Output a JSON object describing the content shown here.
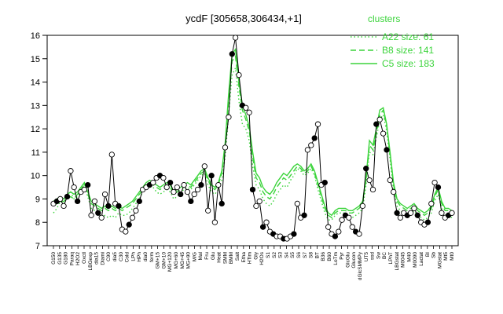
{
  "chart_data": {
    "type": "line",
    "title": "ycdF [305658,306434,+1]",
    "xlabel": "",
    "ylabel": "",
    "ylim": [
      7,
      16
    ],
    "yticks": [
      7,
      8,
      9,
      10,
      11,
      12,
      13,
      14,
      15,
      16
    ],
    "legend": {
      "title": "clusters",
      "placement": "top-right",
      "entries": [
        {
          "label": "A22 size: 61",
          "style": "dotted"
        },
        {
          "label": "B8 size: 141",
          "style": "dashed"
        },
        {
          "label": "C5 size: 183",
          "style": "solid"
        }
      ]
    },
    "x_tick_labels": [
      "G150",
      "G135",
      "G180",
      "Paraq",
      "H2O2",
      "Oxctl",
      "LBGexp",
      "dia15",
      "Diami",
      "C90",
      "dia5",
      "C30",
      "Cold",
      "LPh",
      "HPh",
      "dia0",
      "ferm",
      "GM+15",
      "GM+10",
      "MG+120",
      "MG+60",
      "MG+45",
      "MG+90",
      "M/G",
      "Mal",
      "Fru",
      "Glu",
      "Heat",
      "SMM",
      "BMM",
      "Salt",
      "Etha",
      "HTim",
      "Gly",
      "H2Os",
      "S1",
      "S2",
      "S3",
      "S4",
      "S5",
      "S6",
      "S7",
      "S8",
      "BT",
      "B36",
      "B60",
      "LoTm",
      "Pyr",
      "GlcGlu",
      "Glucon",
      "dGlcSMMPy",
      "UT5",
      "ssd",
      "Sw",
      "BC",
      "LPhT",
      "LBGstat",
      "M0045",
      "M40",
      "M0090",
      "Lactat",
      "BI",
      "Sb",
      "MGstat",
      "Mt5",
      "Mt0"
    ],
    "series": [
      {
        "values": [
          8.8,
          8.9,
          9.0,
          8.7,
          9.1,
          10.2,
          9.5,
          8.9,
          9.3,
          9.4,
          9.6,
          8.3,
          8.9,
          8.4,
          8.2,
          9.2,
          8.7,
          10.9,
          8.8,
          8.7,
          7.7,
          7.6,
          7.9,
          8.2,
          8.5,
          8.9,
          9.4,
          9.5,
          9.6,
          9.7,
          9.9,
          10.0,
          9.9,
          9.5,
          9.7,
          9.3,
          9.5,
          9.2,
          9.6,
          9.3,
          8.9,
          9.2,
          9.4,
          9.6,
          10.4,
          8.5,
          10.0,
          8.0,
          9.6,
          8.8,
          11.2,
          12.5,
          15.2,
          15.9,
          14.3,
          13.0,
          12.9,
          12.7,
          9.4,
          8.7,
          8.9,
          7.8,
          8.0,
          7.6,
          7.5,
          7.4,
          7.4,
          7.3,
          7.3,
          7.4,
          7.5,
          8.8,
          8.2,
          8.3,
          11.1,
          11.3,
          11.6,
          12.2,
          9.6,
          9.7,
          7.8,
          7.5,
          7.4,
          7.6,
          8.1,
          8.3,
          8.2,
          7.8,
          7.6,
          7.5,
          8.7,
          10.3,
          9.8,
          9.4,
          12.2,
          12.4,
          11.8,
          11.1,
          9.8,
          9.3,
          8.4,
          8.2,
          8.4,
          8.3,
          8.4,
          8.6,
          8.3,
          8.0,
          7.9,
          8.0,
          8.8,
          9.7,
          9.5,
          8.4,
          8.2,
          8.3,
          8.4
        ]
      }
    ],
    "clusters": [
      {
        "name": "A22",
        "values": [
          8.4,
          8.6,
          8.9,
          8.8,
          9.2,
          9.3,
          9.0,
          9.1,
          9.4,
          9.6,
          9.1,
          8.6,
          8.5,
          8.4,
          8.2,
          8.3,
          8.2,
          8.3,
          8.2,
          8.4,
          8.3,
          8.3,
          8.4,
          8.6,
          8.8,
          9.0,
          9.3,
          9.5,
          9.6,
          9.5,
          9.3,
          9.2,
          9.3,
          9.4,
          9.3,
          9.0,
          9.1,
          9.3,
          9.4,
          9.5,
          9.4,
          9.6,
          9.8,
          10.0,
          10.1,
          9.6,
          9.3,
          9.2,
          9.4,
          9.8,
          10.8,
          12.6,
          14.3,
          14.6,
          13.2,
          12.2,
          12.0,
          11.5,
          10.4,
          9.6,
          9.4,
          9.0,
          8.8,
          8.7,
          8.9,
          9.2,
          9.4,
          9.6,
          9.5,
          9.8,
          10.0,
          10.3,
          10.2,
          10.0,
          10.1,
          10.3,
          10.0,
          9.4,
          8.9,
          8.4,
          8.1,
          8.1,
          8.3,
          8.4,
          8.4,
          8.4,
          8.3,
          8.2,
          8.3,
          8.4,
          8.6,
          9.6,
          11.0,
          10.9,
          11.6,
          12.4,
          12.6,
          11.9,
          10.7,
          9.4,
          8.7,
          8.5,
          8.4,
          8.3,
          8.4,
          8.5,
          8.3,
          8.2,
          8.1,
          8.2,
          8.4,
          8.9,
          9.2,
          8.6,
          8.3,
          8.3,
          8.2
        ]
      },
      {
        "name": "B8",
        "values": [
          8.7,
          8.8,
          8.9,
          8.9,
          9.0,
          9.1,
          9.0,
          9.2,
          9.4,
          9.6,
          9.2,
          8.8,
          8.7,
          8.6,
          8.5,
          8.6,
          8.5,
          8.6,
          8.5,
          8.6,
          8.5,
          8.6,
          8.7,
          8.8,
          9.0,
          9.2,
          9.4,
          9.6,
          9.7,
          9.6,
          9.5,
          9.4,
          9.5,
          9.6,
          9.5,
          9.2,
          9.3,
          9.4,
          9.5,
          9.6,
          9.5,
          9.7,
          9.9,
          10.1,
          10.2,
          9.8,
          9.5,
          9.4,
          9.6,
          10.1,
          11.2,
          13.2,
          14.9,
          15.1,
          13.8,
          12.8,
          12.4,
          11.9,
          10.8,
          9.9,
          9.7,
          9.3,
          9.1,
          9.0,
          9.2,
          9.5,
          9.7,
          9.9,
          9.8,
          10.0,
          10.2,
          10.4,
          10.3,
          10.1,
          10.2,
          10.4,
          10.1,
          9.6,
          9.1,
          8.6,
          8.3,
          8.2,
          8.4,
          8.5,
          8.5,
          8.5,
          8.4,
          8.4,
          8.5,
          8.6,
          8.8,
          9.8,
          11.3,
          11.1,
          11.8,
          12.6,
          12.8,
          12.1,
          10.9,
          9.6,
          8.9,
          8.7,
          8.6,
          8.5,
          8.6,
          8.7,
          8.5,
          8.4,
          8.3,
          8.4,
          8.6,
          9.1,
          9.4,
          8.8,
          8.5,
          8.5,
          8.4
        ]
      },
      {
        "name": "C5",
        "values": [
          8.9,
          9.0,
          9.1,
          9.0,
          9.2,
          9.3,
          9.2,
          9.3,
          9.5,
          9.7,
          9.3,
          8.9,
          8.8,
          8.7,
          8.6,
          8.7,
          8.6,
          8.7,
          8.6,
          8.7,
          8.6,
          8.7,
          8.8,
          8.9,
          9.1,
          9.3,
          9.5,
          9.7,
          9.8,
          9.7,
          9.6,
          9.5,
          9.6,
          9.7,
          9.6,
          9.3,
          9.4,
          9.5,
          9.6,
          9.7,
          9.6,
          9.8,
          10.0,
          10.2,
          10.3,
          9.9,
          9.6,
          9.5,
          9.7,
          10.2,
          11.4,
          13.5,
          15.2,
          15.4,
          14.0,
          13.0,
          12.6,
          12.1,
          11.0,
          10.1,
          9.9,
          9.5,
          9.3,
          9.2,
          9.4,
          9.7,
          9.9,
          10.1,
          10.0,
          10.2,
          10.4,
          10.5,
          10.4,
          10.2,
          10.3,
          10.5,
          10.2,
          9.7,
          9.2,
          8.7,
          8.4,
          8.3,
          8.5,
          8.6,
          8.6,
          8.6,
          8.5,
          8.5,
          8.6,
          8.7,
          8.9,
          9.9,
          11.5,
          11.3,
          12.0,
          12.8,
          12.9,
          12.2,
          11.0,
          9.7,
          9.0,
          8.8,
          8.7,
          8.6,
          8.7,
          8.8,
          8.6,
          8.5,
          8.4,
          8.5,
          8.7,
          9.2,
          9.5,
          8.9,
          8.6,
          8.6,
          8.5
        ]
      }
    ]
  }
}
